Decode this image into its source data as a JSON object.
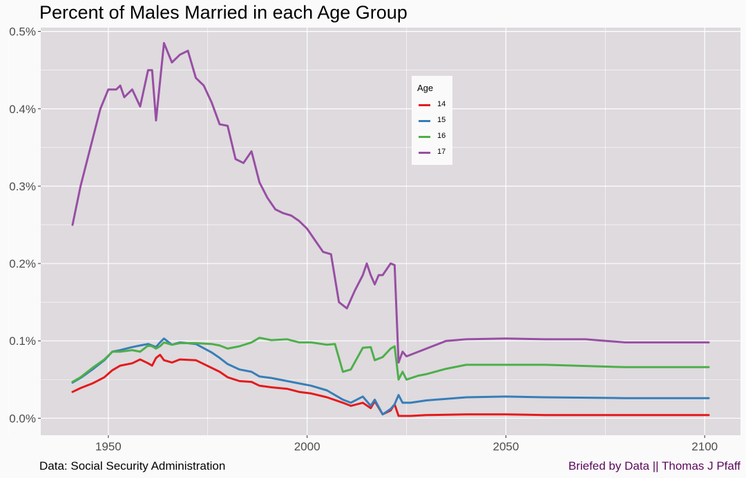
{
  "title": "Percent of Males Married in each Age Group",
  "caption_left": "Data: Social Security Administration",
  "caption_right": "Briefed by Data || Thomas J Pfaff",
  "legend": {
    "title": "Age",
    "items": [
      {
        "label": "14",
        "color": "#e41a1c"
      },
      {
        "label": "15",
        "color": "#377eb8"
      },
      {
        "label": "16",
        "color": "#4daf4a"
      },
      {
        "label": "17",
        "color": "#984ea3"
      }
    ]
  },
  "colors": {
    "panel_background": "#dedade",
    "grid": "#ffffff",
    "page_background": "#fbfafb",
    "caption_right": "#5a0a5a"
  },
  "chart_data": {
    "type": "line",
    "title": "Percent of Males Married in each Age Group",
    "xlabel": "",
    "ylabel": "",
    "xlim": [
      1933,
      2109
    ],
    "ylim": [
      -0.00022,
      0.00505
    ],
    "x_ticks": [
      1950,
      2000,
      2050,
      2100
    ],
    "x_tick_labels": [
      "1950",
      "2000",
      "2050",
      "2100"
    ],
    "y_ticks": [
      0,
      0.001,
      0.002,
      0.003,
      0.004,
      0.005
    ],
    "y_tick_labels": [
      "0.0%",
      "0.1%",
      "0.2%",
      "0.3%",
      "0.4%",
      "0.5%"
    ],
    "grid": true,
    "legend_position": "inside-top-center",
    "series": [
      {
        "name": "14",
        "color": "#e41a1c",
        "points": [
          [
            1941,
            0.00034
          ],
          [
            1943,
            0.00039
          ],
          [
            1946,
            0.00045
          ],
          [
            1949,
            0.00053
          ],
          [
            1951,
            0.00062
          ],
          [
            1953,
            0.00068
          ],
          [
            1956,
            0.00071
          ],
          [
            1958,
            0.00076
          ],
          [
            1960,
            0.00071
          ],
          [
            1961,
            0.00068
          ],
          [
            1962,
            0.00078
          ],
          [
            1963,
            0.00082
          ],
          [
            1964,
            0.00075
          ],
          [
            1966,
            0.00072
          ],
          [
            1968,
            0.00076
          ],
          [
            1972,
            0.00075
          ],
          [
            1976,
            0.00065
          ],
          [
            1978,
            0.0006
          ],
          [
            1980,
            0.00053
          ],
          [
            1983,
            0.00048
          ],
          [
            1986,
            0.00047
          ],
          [
            1988,
            0.00042
          ],
          [
            1991,
            0.0004
          ],
          [
            1995,
            0.00038
          ],
          [
            1998,
            0.00034
          ],
          [
            2001,
            0.00032
          ],
          [
            2005,
            0.00027
          ],
          [
            2009,
            0.0002
          ],
          [
            2011,
            0.00016
          ],
          [
            2014,
            0.0002
          ],
          [
            2016,
            0.00013
          ],
          [
            2017,
            0.00022
          ],
          [
            2019,
            5e-05
          ],
          [
            2021,
            0.0001
          ],
          [
            2022,
            0.00018
          ],
          [
            2023,
            3e-05
          ],
          [
            2026,
            3e-05
          ],
          [
            2030,
            4e-05
          ],
          [
            2040,
            5e-05
          ],
          [
            2050,
            5e-05
          ],
          [
            2060,
            4e-05
          ],
          [
            2080,
            4e-05
          ],
          [
            2101,
            4e-05
          ]
        ]
      },
      {
        "name": "15",
        "color": "#377eb8",
        "points": [
          [
            1941,
            0.00046
          ],
          [
            1943,
            0.00052
          ],
          [
            1946,
            0.00063
          ],
          [
            1949,
            0.00075
          ],
          [
            1951,
            0.00086
          ],
          [
            1953,
            0.00088
          ],
          [
            1956,
            0.00092
          ],
          [
            1958,
            0.00094
          ],
          [
            1960,
            0.00096
          ],
          [
            1961,
            0.00094
          ],
          [
            1962,
            0.00092
          ],
          [
            1963,
            0.00098
          ],
          [
            1964,
            0.00103
          ],
          [
            1966,
            0.00095
          ],
          [
            1968,
            0.00098
          ],
          [
            1972,
            0.00096
          ],
          [
            1976,
            0.00085
          ],
          [
            1978,
            0.00078
          ],
          [
            1980,
            0.0007
          ],
          [
            1983,
            0.00063
          ],
          [
            1986,
            0.0006
          ],
          [
            1988,
            0.00054
          ],
          [
            1991,
            0.00052
          ],
          [
            1995,
            0.00048
          ],
          [
            1998,
            0.00045
          ],
          [
            2001,
            0.00042
          ],
          [
            2005,
            0.00036
          ],
          [
            2009,
            0.00024
          ],
          [
            2011,
            0.0002
          ],
          [
            2014,
            0.00028
          ],
          [
            2016,
            0.00016
          ],
          [
            2017,
            0.00024
          ],
          [
            2019,
            5e-05
          ],
          [
            2021,
            0.00012
          ],
          [
            2022,
            0.00018
          ],
          [
            2023,
            0.0003
          ],
          [
            2024,
            0.0002
          ],
          [
            2026,
            0.0002
          ],
          [
            2030,
            0.00023
          ],
          [
            2040,
            0.00027
          ],
          [
            2050,
            0.00028
          ],
          [
            2060,
            0.00027
          ],
          [
            2080,
            0.00026
          ],
          [
            2101,
            0.00026
          ]
        ]
      },
      {
        "name": "16",
        "color": "#4daf4a",
        "points": [
          [
            1941,
            0.00047
          ],
          [
            1943,
            0.00053
          ],
          [
            1946,
            0.00065
          ],
          [
            1949,
            0.00076
          ],
          [
            1951,
            0.00086
          ],
          [
            1953,
            0.00086
          ],
          [
            1956,
            0.00088
          ],
          [
            1958,
            0.00086
          ],
          [
            1960,
            0.00094
          ],
          [
            1961,
            0.00093
          ],
          [
            1962,
            0.0009
          ],
          [
            1963,
            0.00093
          ],
          [
            1964,
            0.00098
          ],
          [
            1966,
            0.00095
          ],
          [
            1968,
            0.00097
          ],
          [
            1972,
            0.00097
          ],
          [
            1976,
            0.00096
          ],
          [
            1978,
            0.00094
          ],
          [
            1980,
            0.0009
          ],
          [
            1983,
            0.00093
          ],
          [
            1986,
            0.00098
          ],
          [
            1988,
            0.00104
          ],
          [
            1991,
            0.00101
          ],
          [
            1995,
            0.00102
          ],
          [
            1998,
            0.00098
          ],
          [
            2001,
            0.00098
          ],
          [
            2005,
            0.00095
          ],
          [
            2007,
            0.00096
          ],
          [
            2009,
            0.0006
          ],
          [
            2011,
            0.00063
          ],
          [
            2014,
            0.00091
          ],
          [
            2016,
            0.00092
          ],
          [
            2017,
            0.00075
          ],
          [
            2019,
            0.00079
          ],
          [
            2021,
            0.0009
          ],
          [
            2022,
            0.00093
          ],
          [
            2023,
            0.0005
          ],
          [
            2024,
            0.0006
          ],
          [
            2025,
            0.0005
          ],
          [
            2028,
            0.00055
          ],
          [
            2030,
            0.00057
          ],
          [
            2035,
            0.00064
          ],
          [
            2040,
            0.00069
          ],
          [
            2050,
            0.00069
          ],
          [
            2060,
            0.00069
          ],
          [
            2080,
            0.00066
          ],
          [
            2101,
            0.00066
          ]
        ]
      },
      {
        "name": "17",
        "color": "#984ea3",
        "points": [
          [
            1941,
            0.0025
          ],
          [
            1943,
            0.003
          ],
          [
            1946,
            0.0036
          ],
          [
            1948,
            0.004
          ],
          [
            1950,
            0.00425
          ],
          [
            1952,
            0.00425
          ],
          [
            1953,
            0.0043
          ],
          [
            1954,
            0.00415
          ],
          [
            1956,
            0.00425
          ],
          [
            1958,
            0.00403
          ],
          [
            1960,
            0.0045
          ],
          [
            1961,
            0.0045
          ],
          [
            1962,
            0.00385
          ],
          [
            1964,
            0.00485
          ],
          [
            1966,
            0.0046
          ],
          [
            1968,
            0.0047
          ],
          [
            1970,
            0.00475
          ],
          [
            1972,
            0.0044
          ],
          [
            1974,
            0.0043
          ],
          [
            1976,
            0.00408
          ],
          [
            1978,
            0.0038
          ],
          [
            1980,
            0.00378
          ],
          [
            1982,
            0.00335
          ],
          [
            1984,
            0.0033
          ],
          [
            1986,
            0.00345
          ],
          [
            1988,
            0.00305
          ],
          [
            1990,
            0.00285
          ],
          [
            1992,
            0.0027
          ],
          [
            1994,
            0.00265
          ],
          [
            1996,
            0.00262
          ],
          [
            1998,
            0.00255
          ],
          [
            2000,
            0.00245
          ],
          [
            2002,
            0.0023
          ],
          [
            2004,
            0.00215
          ],
          [
            2006,
            0.00212
          ],
          [
            2008,
            0.0015
          ],
          [
            2010,
            0.00142
          ],
          [
            2012,
            0.00165
          ],
          [
            2014,
            0.00185
          ],
          [
            2015,
            0.002
          ],
          [
            2016,
            0.00185
          ],
          [
            2017,
            0.00173
          ],
          [
            2018,
            0.00185
          ],
          [
            2019,
            0.00185
          ],
          [
            2021,
            0.002
          ],
          [
            2022,
            0.00198
          ],
          [
            2023,
            0.00072
          ],
          [
            2024,
            0.00086
          ],
          [
            2025,
            0.0008
          ],
          [
            2026,
            0.00082
          ],
          [
            2028,
            0.00086
          ],
          [
            2030,
            0.0009
          ],
          [
            2035,
            0.001
          ],
          [
            2040,
            0.00102
          ],
          [
            2050,
            0.00103
          ],
          [
            2060,
            0.00102
          ],
          [
            2070,
            0.00102
          ],
          [
            2080,
            0.00098
          ],
          [
            2101,
            0.00098
          ]
        ]
      }
    ]
  }
}
